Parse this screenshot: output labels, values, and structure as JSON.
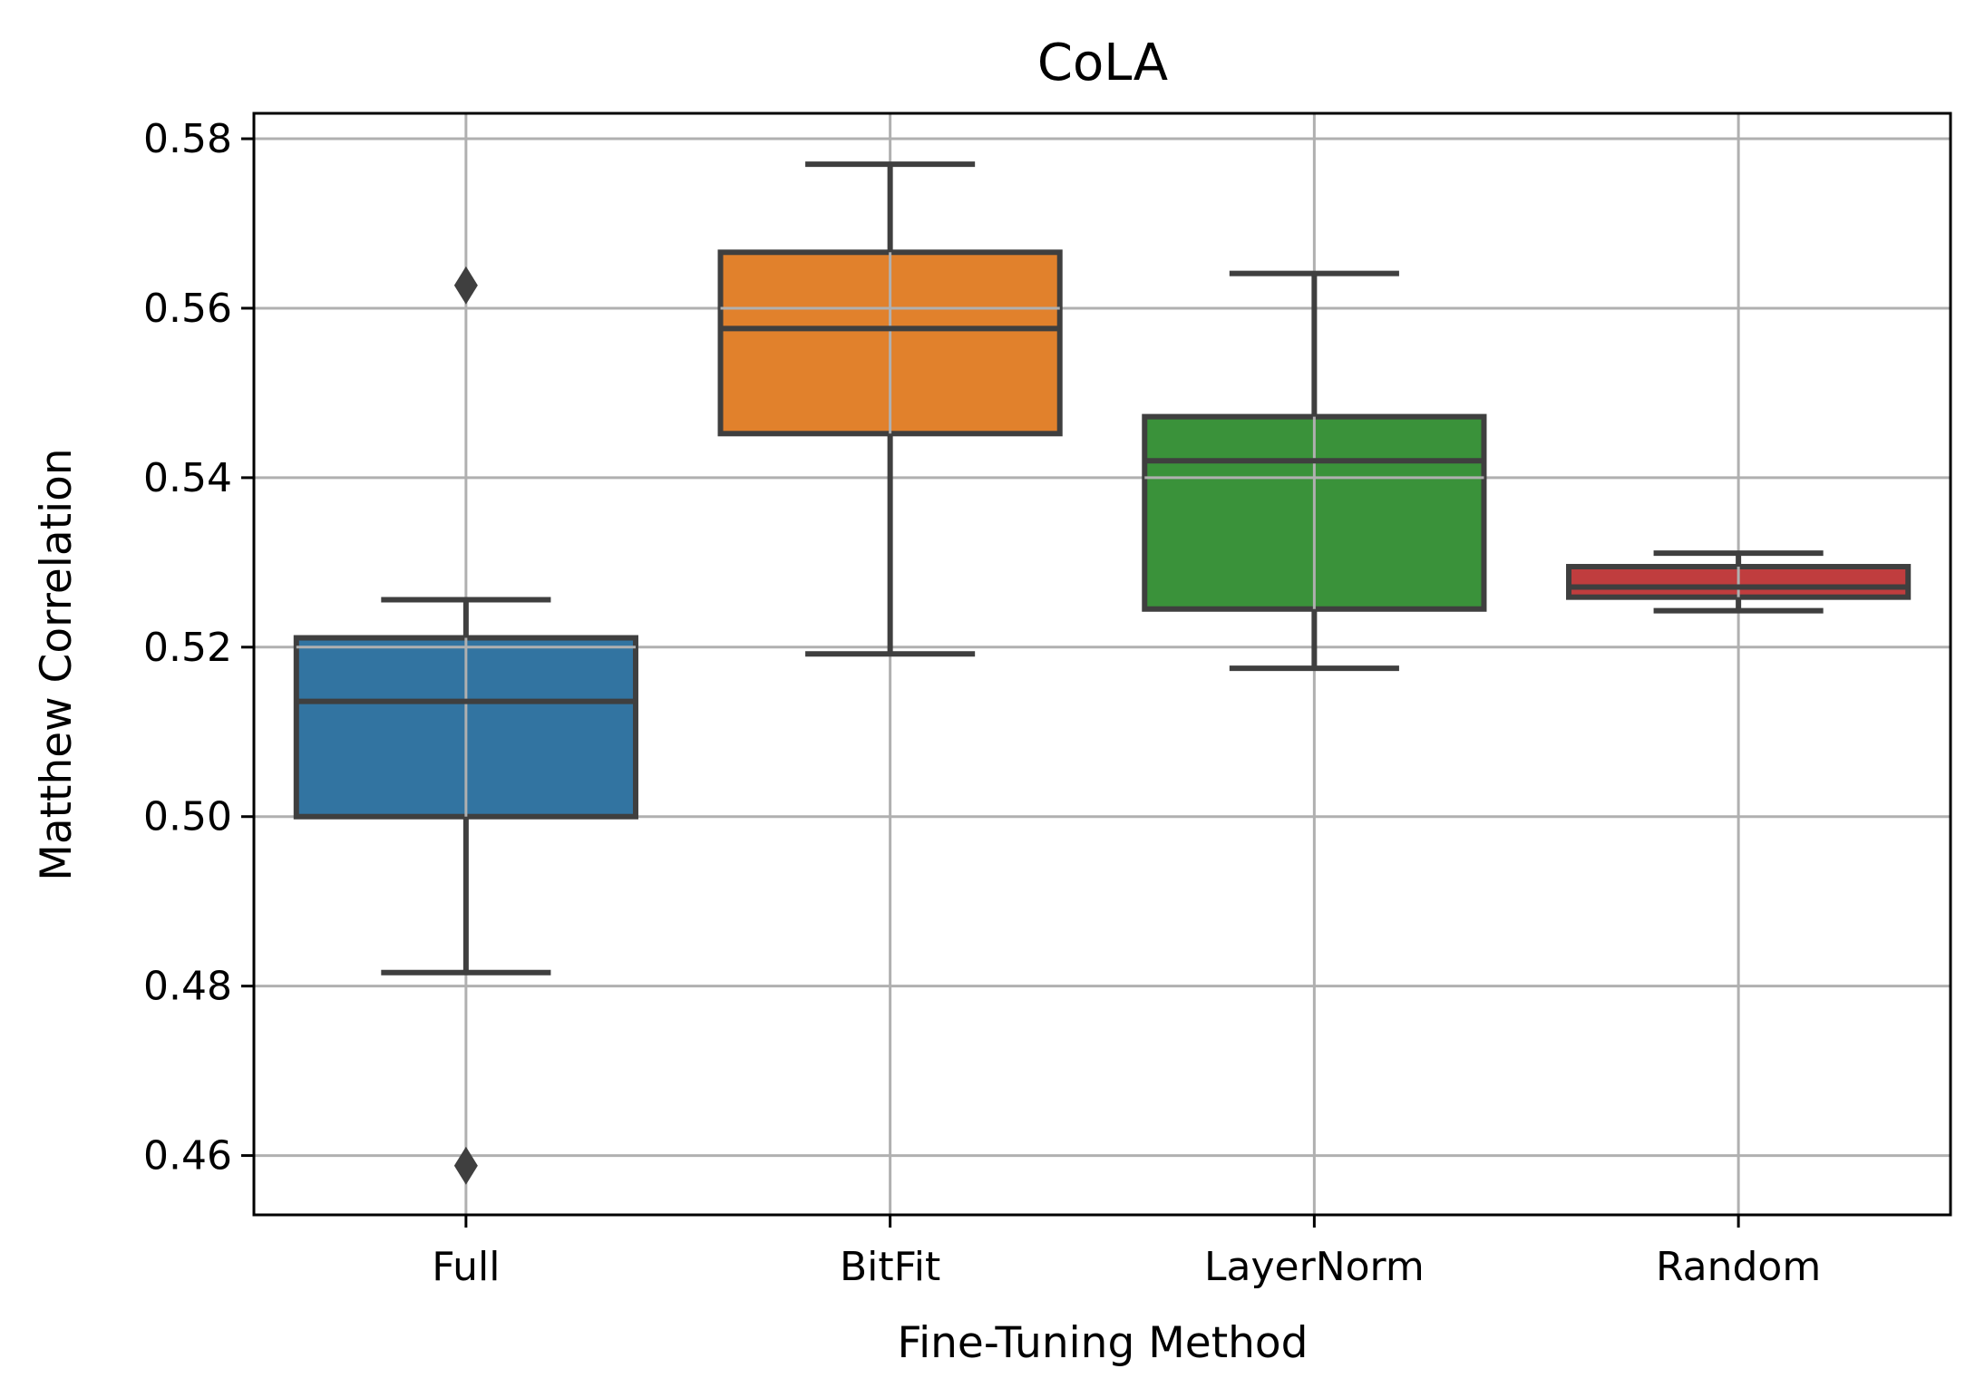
{
  "chart_data": {
    "type": "box",
    "title": "CoLA",
    "xlabel": "Fine-Tuning Method",
    "ylabel": "Matthew Correlation",
    "ylim": [
      0.453,
      0.583
    ],
    "yticks": [
      0.46,
      0.48,
      0.5,
      0.52,
      0.54,
      0.56,
      0.58
    ],
    "ytick_labels": [
      "0.46",
      "0.48",
      "0.50",
      "0.52",
      "0.54",
      "0.56",
      "0.58"
    ],
    "grid": true,
    "categories": [
      "Full",
      "BitFit",
      "LayerNorm",
      "Random"
    ],
    "boxes": [
      {
        "category": "Full",
        "whisker_low": 0.4816,
        "q1": 0.5,
        "median": 0.5136,
        "q3": 0.5211,
        "whisker_high": 0.5256,
        "outliers": [
          0.5627,
          0.4588
        ],
        "color": "#3274a1"
      },
      {
        "category": "BitFit",
        "whisker_low": 0.5192,
        "q1": 0.5452,
        "median": 0.5576,
        "q3": 0.5666,
        "whisker_high": 0.577,
        "outliers": [],
        "color": "#e1812c"
      },
      {
        "category": "LayerNorm",
        "whisker_low": 0.5175,
        "q1": 0.5245,
        "median": 0.542,
        "q3": 0.5472,
        "whisker_high": 0.5641,
        "outliers": [],
        "color": "#3a923a"
      },
      {
        "category": "Random",
        "whisker_low": 0.5243,
        "q1": 0.5259,
        "median": 0.5271,
        "q3": 0.5295,
        "whisker_high": 0.5311,
        "outliers": [],
        "color": "#c03d3e"
      }
    ]
  }
}
